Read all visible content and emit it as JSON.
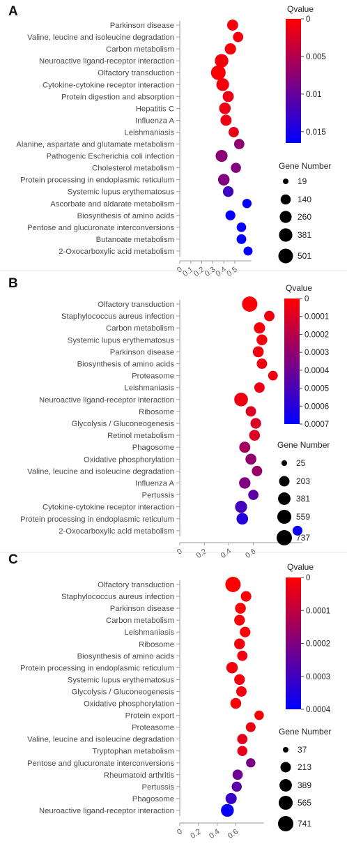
{
  "chart_data": [
    {
      "panel_label": "A",
      "type": "scatter",
      "categories": [
        "Parkinson disease",
        "Valine, leucine and isoleucine degradation",
        "Carbon metabolism",
        "Neuroactive ligand-receptor interaction",
        "Olfactory transduction",
        "Cytokine-cytokine receptor interaction",
        "Protein digestion and absorption",
        "Hepatitis C",
        "Influenza A",
        "Leishmaniasis",
        "Alanine, aspartate and glutamate metabolism",
        "Pathogenic Escherichia coli infection",
        "Cholesterol metabolism",
        "Protein processing in endoplasmic reticulum",
        "Systemic lupus erythematosus",
        "Ascorbate and aldarate metabolism",
        "Biosynthesis of amino acids",
        "Pentose and glucuronate interconversions",
        "Butanoate metabolism",
        "2-Oxocarboxylic acid metabolism"
      ],
      "x": [
        0.48,
        0.53,
        0.46,
        0.38,
        0.35,
        0.39,
        0.44,
        0.41,
        0.42,
        0.49,
        0.54,
        0.38,
        0.51,
        0.4,
        0.44,
        0.61,
        0.46,
        0.56,
        0.56,
        0.62
      ],
      "qvalue": [
        0.0005,
        0.0008,
        0.0006,
        0.0007,
        0.0003,
        0.0008,
        0.0012,
        0.0012,
        0.0012,
        0.0015,
        0.0072,
        0.0075,
        0.0082,
        0.0082,
        0.0125,
        0.0162,
        0.0162,
        0.0162,
        0.0162,
        0.0162
      ],
      "gene_number": [
        190,
        150,
        210,
        390,
        501,
        320,
        200,
        230,
        200,
        150,
        150,
        260,
        140,
        230,
        170,
        100,
        130,
        110,
        120,
        90
      ],
      "xticks": [
        "0",
        "0.1",
        "0.2",
        "0.3",
        "0.4",
        "0.5"
      ],
      "xlim": [
        0,
        0.65
      ],
      "legend_color_title": "Qvalue",
      "color_ticks": [
        "0",
        "0.005",
        "0.01",
        "0.015"
      ],
      "color_range": [
        0,
        0.0165
      ],
      "legend_size_title": "Gene Number",
      "size_legend": [
        "19",
        "140",
        "260",
        "381",
        "501"
      ],
      "size_legend_values": [
        19,
        140,
        260,
        381,
        501
      ]
    },
    {
      "panel_label": "B",
      "type": "scatter",
      "categories": [
        "Olfactory transduction",
        "Staphylococcus aureus infection",
        "Carbon metabolism",
        "Systemic lupus erythematosus",
        "Parkinson disease",
        "Biosynthesis of amino acids",
        "Proteasome",
        "Leishmaniasis",
        "Neuroactive ligand-receptor interaction",
        "Ribosome",
        "Glycolysis / Gluconeogenesis",
        "Retinol metabolism",
        "Phagosome",
        "Oxidative phosphorylation",
        "Valine, leucine and isoleucine degradation",
        "Influenza A",
        "Pertussis",
        "Cytokine-cytokine receptor interaction",
        "Protein processing in endoplasmic reticulum",
        "2-Oxocarboxylic acid metabolism"
      ],
      "x": [
        0.57,
        0.73,
        0.65,
        0.67,
        0.64,
        0.67,
        0.76,
        0.65,
        0.5,
        0.58,
        0.62,
        0.61,
        0.53,
        0.58,
        0.63,
        0.53,
        0.6,
        0.5,
        0.51,
        0.96
      ],
      "qvalue": [
        1e-05,
        4e-05,
        3e-05,
        4e-05,
        4e-05,
        5e-05,
        5e-05,
        5e-05,
        4e-05,
        0.0001,
        0.00011,
        0.0001,
        0.00025,
        0.0003,
        0.00028,
        0.00035,
        0.00045,
        0.00052,
        0.0006,
        0.00067
      ],
      "gene_number": [
        737,
        200,
        260,
        230,
        240,
        200,
        150,
        200,
        520,
        200,
        220,
        230,
        250,
        240,
        200,
        280,
        190,
        340,
        300,
        160
      ],
      "xticks": [
        "0",
        "0.2",
        "0.4",
        "0.6"
      ],
      "xlim": [
        0,
        1.0
      ],
      "legend_color_title": "Qvalue",
      "color_ticks": [
        "0",
        "0.0001",
        "0.0002",
        "0.0003",
        "0.0004",
        "0.0005",
        "0.0006",
        "0.0007"
      ],
      "color_range": [
        0,
        0.0007
      ],
      "legend_size_title": "Gene Number",
      "size_legend": [
        "25",
        "203",
        "381",
        "559",
        "737"
      ],
      "size_legend_values": [
        25,
        203,
        381,
        559,
        737
      ]
    },
    {
      "panel_label": "C",
      "type": "scatter",
      "categories": [
        "Olfactory transduction",
        "Staphylococcus aureus infection",
        "Parkinson disease",
        "Carbon metabolism",
        "Leishmaniasis",
        "Ribosome",
        "Biosynthesis of amino acids",
        "Protein processing in endoplasmic reticulum",
        "Systemic lupus erythematosus",
        "Glycolysis / Gluconeogenesis",
        "Oxidative phosphorylation",
        "Protein export",
        "Proteasome",
        "Valine, leucine and isoleucine degradation",
        "Tryptophan metabolism",
        "Pentose and glucuronate interconversions",
        "Rheumatoid arthritis",
        "Pertussis",
        "Phagosome",
        "Neuroactive ligand-receptor interaction"
      ],
      "x": [
        0.57,
        0.71,
        0.65,
        0.64,
        0.7,
        0.64,
        0.67,
        0.56,
        0.64,
        0.66,
        0.6,
        0.85,
        0.76,
        0.67,
        0.67,
        0.76,
        0.62,
        0.61,
        0.55,
        0.51
      ],
      "qvalue": [
        0.0,
        1e-05,
        1e-05,
        1e-05,
        1e-05,
        2e-05,
        2e-05,
        2e-05,
        2e-05,
        2e-05,
        1e-05,
        1e-05,
        3e-05,
        4e-05,
        4e-05,
        0.00021,
        0.00023,
        0.00026,
        0.00031,
        0.00039
      ],
      "gene_number": [
        741,
        220,
        240,
        230,
        220,
        240,
        200,
        290,
        230,
        210,
        240,
        150,
        170,
        200,
        190,
        140,
        200,
        190,
        270,
        430
      ],
      "xticks": [
        "0",
        "0.2",
        "0.4",
        "0.6"
      ],
      "xlim": [
        0,
        0.9
      ],
      "legend_color_title": "Qvalue",
      "color_ticks": [
        "0",
        "0.0001",
        "0.0002",
        "0.0003",
        "0.0004"
      ],
      "color_range": [
        0,
        0.0004
      ],
      "legend_size_title": "Gene Number",
      "size_legend": [
        "37",
        "213",
        "389",
        "565",
        "741"
      ],
      "size_legend_values": [
        37,
        213,
        389,
        565,
        741
      ]
    }
  ]
}
